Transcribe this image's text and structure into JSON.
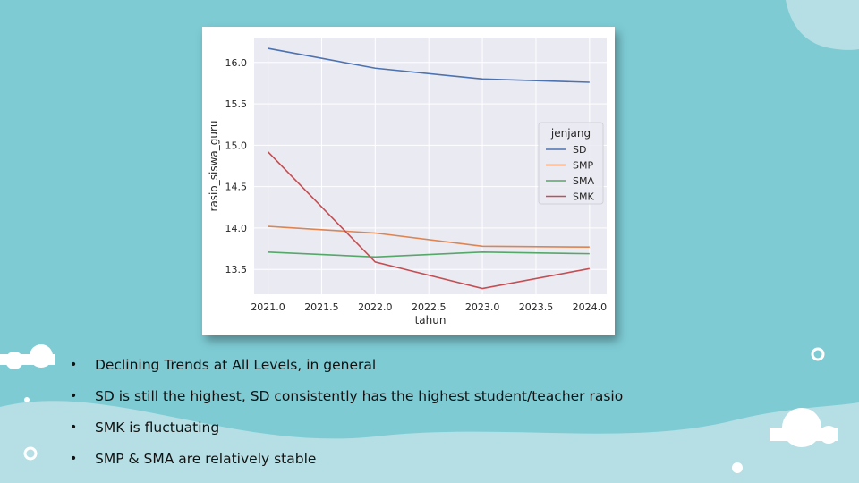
{
  "slide": {
    "bullets": [
      "Declining Trends at All Levels, in general",
      "SD is still the highest, SD consistently has the highest student/teacher rasio",
      "SMK is fluctuating",
      "SMP & SMA are relatively stable"
    ],
    "colors": {
      "background": "#7ecbd4",
      "wave": "#b5dfe4",
      "accent_white": "#ffffff"
    }
  },
  "chart_data": {
    "type": "line",
    "title": "",
    "xlabel": "tahun",
    "ylabel": "rasio_siswa_guru",
    "x": [
      2021.0,
      2022.0,
      2023.0,
      2024.0
    ],
    "xticks": [
      "2021.0",
      "2021.5",
      "2022.0",
      "2022.5",
      "2023.0",
      "2023.5",
      "2024.0"
    ],
    "yticks": [
      "13.5",
      "14.0",
      "14.5",
      "15.0",
      "15.5",
      "16.0"
    ],
    "xlim": [
      2020.87,
      2024.16
    ],
    "ylim": [
      13.2,
      16.3
    ],
    "grid": true,
    "legend": {
      "title": "jenjang",
      "placement": "center-right"
    },
    "series": [
      {
        "name": "SD",
        "color": "#4c72b0",
        "values": [
          16.17,
          15.93,
          15.8,
          15.76
        ]
      },
      {
        "name": "SMP",
        "color": "#dd8452",
        "values": [
          14.02,
          13.94,
          13.78,
          13.77
        ]
      },
      {
        "name": "SMA",
        "color": "#55a868",
        "values": [
          13.71,
          13.65,
          13.71,
          13.69
        ]
      },
      {
        "name": "SMK",
        "color": "#c44e52",
        "values": [
          14.92,
          13.59,
          13.27,
          13.51
        ]
      }
    ]
  }
}
